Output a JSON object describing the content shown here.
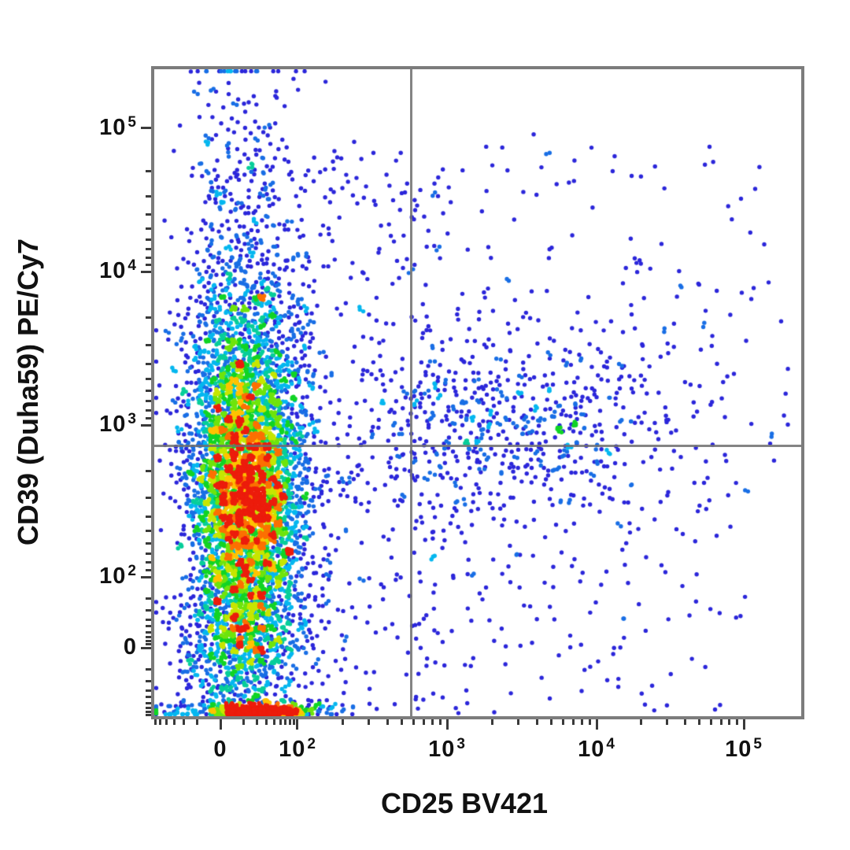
{
  "chart_data": {
    "type": "scatter",
    "subtype": "flow-cytometry-pseudocolor-density",
    "title": "",
    "xlabel": "CD25 BV421",
    "ylabel": "CD39 (Duha59) PE/Cy7",
    "grid": "off",
    "legend": "none",
    "x_scale": {
      "type": "biexponential",
      "ticks": [
        {
          "base": "0",
          "exp": "",
          "frac": 0.1022
        },
        {
          "base": "10",
          "exp": "2",
          "frac": 0.2214
        },
        {
          "base": "10",
          "exp": "3",
          "frac": 0.4526
        },
        {
          "base": "10",
          "exp": "4",
          "frac": 0.6837
        },
        {
          "base": "10",
          "exp": "5",
          "frac": 0.9112
        }
      ]
    },
    "y_scale": {
      "type": "biexponential",
      "ticks": [
        {
          "base": "10",
          "exp": "5",
          "frac": 0.0912
        },
        {
          "base": "10",
          "exp": "4",
          "frac": 0.3127
        },
        {
          "base": "10",
          "exp": "3",
          "frac": 0.5499
        },
        {
          "base": "10",
          "exp": "2",
          "frac": 0.7847
        },
        {
          "base": "0",
          "exp": "",
          "frac": 0.8942
        }
      ]
    },
    "gates": {
      "quadrant_x_frac": 0.3978,
      "quadrant_y_frac": 0.5827
    },
    "populations": [
      {
        "name": "cd25neg-upper-tail",
        "shape": "gauss",
        "n": 520,
        "cx": 0.139,
        "sx": 0.048,
        "cy": 0.3,
        "sy": 0.17
      },
      {
        "name": "cd25neg-mid-band",
        "shape": "gauss",
        "n": 1500,
        "cx": 0.139,
        "sx": 0.048,
        "cy": 0.5,
        "sy": 0.095
      },
      {
        "name": "cd25neg-core",
        "shape": "gauss",
        "n": 3100,
        "cx": 0.142,
        "sx": 0.042,
        "cy": 0.665,
        "sy": 0.085
      },
      {
        "name": "cd25neg-low-band",
        "shape": "gauss",
        "n": 1350,
        "cx": 0.139,
        "sx": 0.047,
        "cy": 0.865,
        "sy": 0.07
      },
      {
        "name": "bottom-edge-pileup",
        "shape": "band",
        "n": 650,
        "cx": 0.163,
        "sx": 0.033,
        "y0": 0.985,
        "y1": 1.0
      },
      {
        "name": "bottom-edge-pileup-wide",
        "shape": "band",
        "n": 220,
        "cx": 0.16,
        "sx": 0.09,
        "y0": 0.975,
        "y1": 1.0
      },
      {
        "name": "cd25pos-band",
        "shape": "gauss",
        "n": 680,
        "cx": 0.55,
        "sx": 0.14,
        "cy": 0.545,
        "sy": 0.07
      },
      {
        "name": "upper-right-sparse",
        "shape": "uniform",
        "n": 110,
        "x0": 0.3,
        "x1": 0.95,
        "y0": 0.1,
        "y1": 0.44
      },
      {
        "name": "lower-right-sparse",
        "shape": "uniform",
        "n": 190,
        "x0": 0.25,
        "x1": 0.92,
        "y0": 0.62,
        "y1": 0.995
      },
      {
        "name": "gap-sparse",
        "shape": "uniform",
        "n": 260,
        "x0": 0.2,
        "x1": 0.45,
        "y0": 0.12,
        "y1": 0.97
      },
      {
        "name": "far-right-sparse",
        "shape": "uniform",
        "n": 30,
        "x0": 0.78,
        "x1": 1.0,
        "y0": 0.33,
        "y1": 0.62
      }
    ],
    "density_colormap": [
      [
        0.0,
        "#2b26da"
      ],
      [
        0.25,
        "#00c9f2"
      ],
      [
        0.45,
        "#12d41f"
      ],
      [
        0.62,
        "#a8ee00"
      ],
      [
        0.75,
        "#ffd800"
      ],
      [
        0.87,
        "#ff7e00"
      ],
      [
        1.0,
        "#ec1c0c"
      ]
    ]
  },
  "colors": {
    "background": "#ffffff",
    "frame": "#7c7c7c",
    "tick": "#3a3a3a",
    "text": "#111111",
    "quadrant_line": "#6e6e6e"
  }
}
